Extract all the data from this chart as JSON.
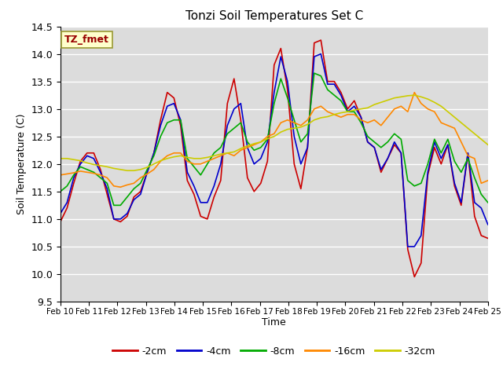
{
  "title": "Tonzi Soil Temperatures Set C",
  "xlabel": "Time",
  "ylabel": "Soil Temperature (C)",
  "ylim": [
    9.5,
    14.5
  ],
  "annotation": "TZ_fmet",
  "colors": {
    "-2cm": "#cc0000",
    "-4cm": "#0000cc",
    "-8cm": "#00aa00",
    "-16cm": "#ff8800",
    "-32cm": "#cccc00"
  },
  "legend_labels": [
    "-2cm",
    "-4cm",
    "-8cm",
    "-16cm",
    "-32cm"
  ],
  "xtick_labels": [
    "Feb 10",
    "Feb 11",
    "Feb 12",
    "Feb 13",
    "Feb 14",
    "Feb 15",
    "Feb 16",
    "Feb 17",
    "Feb 18",
    "Feb 19",
    "Feb 20",
    "Feb 21",
    "Feb 22",
    "Feb 23",
    "Feb 24",
    "Feb 25"
  ],
  "bg_color": "#dcdcdc",
  "series": {
    "-2cm": [
      10.95,
      11.2,
      11.65,
      12.05,
      12.2,
      12.2,
      11.9,
      11.45,
      11.0,
      10.95,
      11.05,
      11.4,
      11.5,
      11.85,
      12.2,
      12.8,
      13.3,
      13.2,
      12.7,
      11.7,
      11.45,
      11.05,
      11.0,
      11.4,
      11.7,
      13.1,
      13.55,
      12.8,
      11.75,
      11.5,
      11.65,
      12.05,
      13.8,
      14.1,
      13.35,
      12.0,
      11.55,
      12.3,
      14.2,
      14.25,
      13.5,
      13.5,
      13.3,
      13.0,
      13.15,
      12.85,
      12.4,
      12.3,
      11.85,
      12.1,
      12.35,
      12.2,
      10.45,
      9.95,
      10.2,
      11.8,
      12.3,
      12.0,
      12.35,
      11.6,
      11.25,
      12.2,
      11.05,
      10.7,
      10.65
    ],
    "-4cm": [
      11.1,
      11.3,
      11.75,
      12.0,
      12.15,
      12.1,
      11.85,
      11.55,
      11.0,
      11.0,
      11.1,
      11.35,
      11.45,
      11.85,
      12.2,
      12.7,
      13.05,
      13.1,
      12.8,
      11.85,
      11.6,
      11.3,
      11.3,
      11.6,
      12.0,
      12.7,
      13.0,
      13.1,
      12.3,
      12.0,
      12.1,
      12.4,
      13.3,
      13.95,
      13.5,
      12.5,
      12.0,
      12.3,
      13.95,
      14.0,
      13.45,
      13.45,
      13.25,
      12.95,
      13.05,
      12.85,
      12.4,
      12.3,
      11.9,
      12.1,
      12.4,
      12.2,
      10.5,
      10.5,
      10.7,
      11.85,
      12.4,
      12.1,
      12.35,
      11.65,
      11.3,
      12.2,
      11.3,
      11.2,
      10.9
    ],
    "-8cm": [
      11.5,
      11.6,
      11.8,
      11.95,
      11.9,
      11.85,
      11.75,
      11.65,
      11.25,
      11.25,
      11.4,
      11.55,
      11.65,
      11.9,
      12.15,
      12.5,
      12.75,
      12.8,
      12.8,
      12.1,
      11.95,
      11.8,
      12.0,
      12.2,
      12.3,
      12.55,
      12.65,
      12.75,
      12.4,
      12.25,
      12.3,
      12.45,
      13.1,
      13.55,
      13.2,
      12.8,
      12.4,
      12.55,
      13.65,
      13.6,
      13.35,
      13.25,
      13.15,
      12.95,
      12.95,
      12.75,
      12.5,
      12.4,
      12.3,
      12.4,
      12.55,
      12.45,
      11.7,
      11.6,
      11.65,
      12.0,
      12.45,
      12.2,
      12.45,
      12.05,
      11.85,
      12.1,
      11.75,
      11.45,
      11.3
    ],
    "-16cm": [
      11.8,
      11.82,
      11.84,
      11.87,
      11.85,
      11.83,
      11.8,
      11.75,
      11.6,
      11.58,
      11.62,
      11.65,
      11.75,
      11.82,
      11.9,
      12.05,
      12.15,
      12.2,
      12.2,
      12.05,
      12.0,
      12.0,
      12.05,
      12.1,
      12.15,
      12.2,
      12.15,
      12.25,
      12.3,
      12.35,
      12.4,
      12.5,
      12.55,
      12.75,
      12.8,
      12.75,
      12.7,
      12.8,
      13.0,
      13.05,
      12.95,
      12.9,
      12.85,
      12.9,
      12.9,
      12.8,
      12.75,
      12.8,
      12.7,
      12.85,
      13.0,
      13.05,
      12.95,
      13.3,
      13.1,
      13.0,
      12.95,
      12.75,
      12.7,
      12.65,
      12.4,
      12.15,
      12.1,
      11.65,
      11.7
    ],
    "-32cm": [
      12.1,
      12.1,
      12.08,
      12.06,
      12.02,
      11.99,
      11.97,
      11.95,
      11.92,
      11.9,
      11.88,
      11.88,
      11.9,
      11.94,
      12.0,
      12.06,
      12.1,
      12.13,
      12.15,
      12.12,
      12.1,
      12.1,
      12.12,
      12.15,
      12.18,
      12.2,
      12.22,
      12.28,
      12.33,
      12.37,
      12.4,
      12.46,
      12.5,
      12.58,
      12.63,
      12.65,
      12.67,
      12.72,
      12.8,
      12.84,
      12.86,
      12.9,
      12.93,
      12.95,
      12.98,
      13.0,
      13.02,
      13.08,
      13.12,
      13.16,
      13.2,
      13.22,
      13.24,
      13.25,
      13.22,
      13.18,
      13.12,
      13.05,
      12.95,
      12.85,
      12.75,
      12.65,
      12.55,
      12.45,
      12.35
    ]
  }
}
